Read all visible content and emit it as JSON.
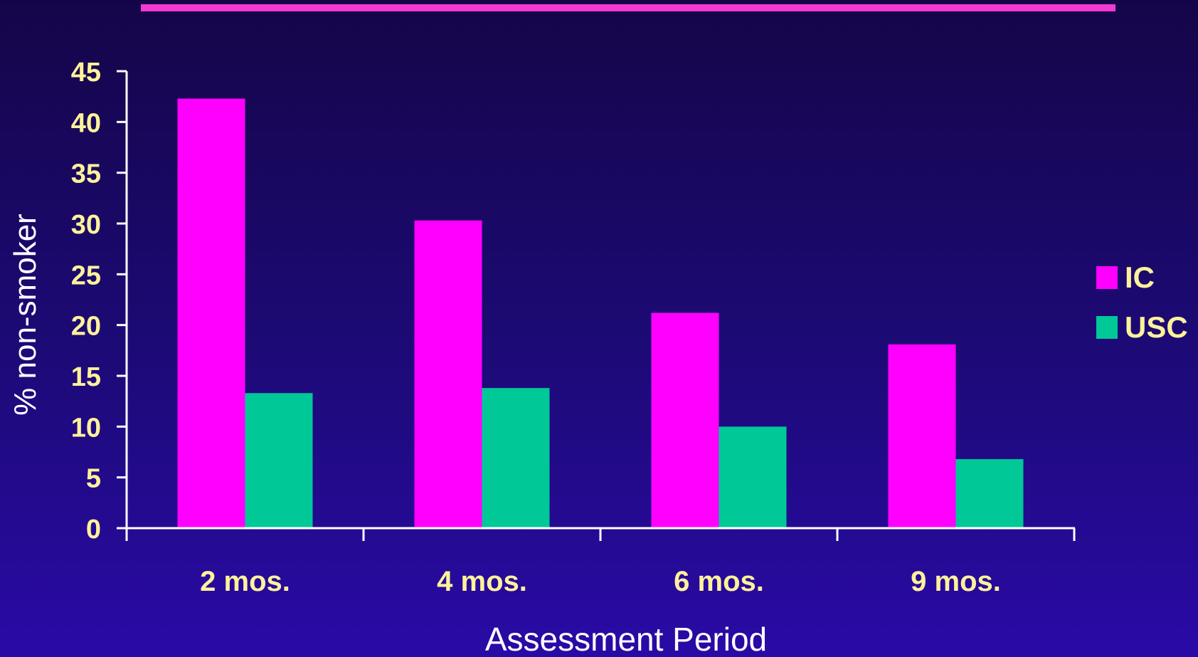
{
  "colors": {
    "title_rule": "#f23ad2",
    "ic": "#ff00ff",
    "usc": "#00c897",
    "axis": "#ffffff",
    "tick_text": "#fff29a",
    "axis_title": "#ffffff"
  },
  "chart_data": {
    "type": "bar",
    "title": "",
    "xlabel": "Assessment Period",
    "ylabel": "% non-smoker",
    "ylim": [
      0,
      45
    ],
    "yticks": [
      "0",
      "5",
      "10",
      "15",
      "20",
      "25",
      "30",
      "35",
      "40",
      "45"
    ],
    "categories": [
      "2 mos.",
      "4 mos.",
      "6 mos.",
      "9 mos."
    ],
    "series": [
      {
        "name": "IC",
        "color": "#ff00ff",
        "values": [
          42.3,
          30.3,
          21.2,
          18.1
        ]
      },
      {
        "name": "USC",
        "color": "#00c897",
        "values": [
          13.3,
          13.8,
          10.0,
          6.8
        ]
      }
    ],
    "legend": {
      "position": "right",
      "entries": [
        "IC",
        "USC"
      ]
    },
    "grid": false
  }
}
